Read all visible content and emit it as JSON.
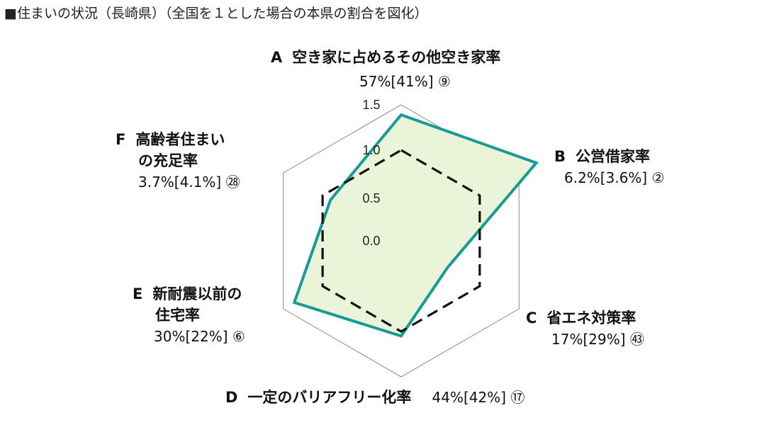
{
  "header": {
    "title": "■住まいの状況（長崎県）（全国を１とした場合の本県の割合を図化）"
  },
  "labels": {
    "A": {
      "letter": "A",
      "text": "空き家に占めるその他空き家率",
      "value": "57%[41%] ⑨"
    },
    "B": {
      "letter": "B",
      "text": "公営借家率",
      "value": "6.2%[3.6%] ②"
    },
    "C": {
      "letter": "C",
      "text": "省エネ対策率",
      "value": "17%[29%] ㊸"
    },
    "D": {
      "letter": "D",
      "text": "一定のバリアフリー化率",
      "value": "44%[42%] ⑰"
    },
    "E": {
      "letter": "E",
      "line1": "新耐震以前の",
      "line2": "住宅率",
      "value": "30%[22%] ⑥"
    },
    "F": {
      "letter": "F",
      "line1": "高齢者住まい",
      "line2": "の充足率",
      "value": "3.7%[4.1%] ㉘"
    }
  },
  "colors": {
    "prefecture_line": "#1a9a96",
    "prefecture_fill": "#eaf4d9",
    "national_line": "#111111",
    "grid": "#888888"
  },
  "chart_data": {
    "type": "radar",
    "axes": [
      "A",
      "B",
      "C",
      "D",
      "E",
      "F"
    ],
    "rmax": 1.5,
    "tick_labels": [
      "0.0",
      "0.5",
      "1.0",
      "1.5"
    ],
    "tick_values": [
      0.0,
      0.5,
      1.0,
      1.5
    ],
    "series": [
      {
        "values": [
          1.39,
          1.72,
          0.59,
          1.05,
          1.36,
          0.9
        ],
        "style": "solid-teal-filled"
      },
      {
        "values": [
          1,
          1,
          1,
          1,
          1,
          1
        ],
        "style": "dashed-black"
      }
    ]
  }
}
